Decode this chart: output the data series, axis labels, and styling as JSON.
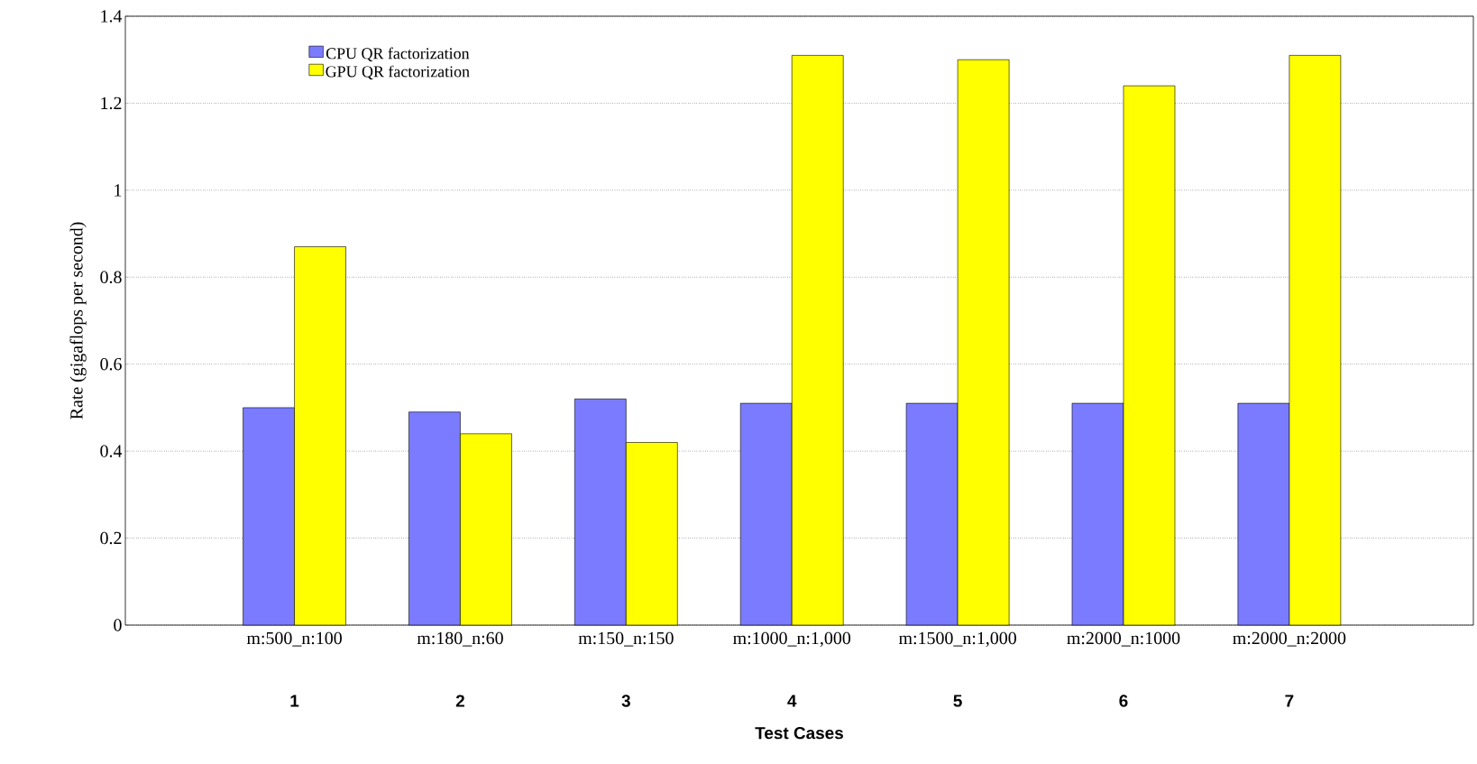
{
  "chart_data": {
    "type": "bar",
    "xlabel": "Test Cases",
    "ylabel": "Rate (gigaflops per second)",
    "categories": [
      "m:500_n:100",
      "m:180_n:60",
      "m:150_n:150",
      "m:1000_n:1,000",
      "m:1500_n:1,000",
      "m:2000_n:1000",
      "m:2000_n:2000"
    ],
    "series": [
      {
        "name": "CPU QR factorization",
        "color": "#7b7bff",
        "values": [
          0.5,
          0.49,
          0.52,
          0.51,
          0.51,
          0.51,
          0.51
        ]
      },
      {
        "name": "GPU QR factorization",
        "color": "#ffff00",
        "values": [
          0.87,
          0.44,
          0.42,
          1.31,
          1.3,
          1.24,
          1.31
        ]
      }
    ],
    "annotations": [
      "1",
      "2",
      "3",
      "4",
      "5",
      "6",
      "7"
    ],
    "ylim": [
      0,
      1.4
    ],
    "yticks": [
      0,
      0.2,
      0.4,
      0.6,
      0.8,
      1,
      1.2,
      1.4
    ],
    "grid": "y",
    "legend": "top left"
  }
}
